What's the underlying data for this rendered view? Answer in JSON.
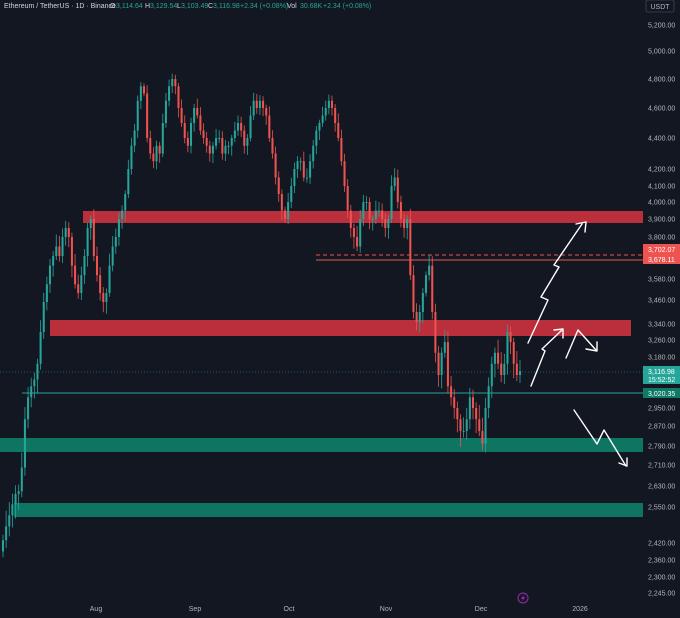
{
  "header": {
    "symbol": "Ethereum / TetherUS · 1D · Binance",
    "open_label": "O",
    "open_value": "3,114.64",
    "high_label": "H",
    "high_value": "3,129.54",
    "low_label": "L",
    "low_value": "3,103.49",
    "close_label": "C",
    "close_value": "3,116.98",
    "change": "+2.34 (+0.08%)",
    "vol_label": "Vol",
    "vol_value": "30.68K",
    "vol_change": "+2.34 (+0.08%)"
  },
  "currency_badge": "USDT",
  "price_tags": {
    "red_upper": "3,702.07",
    "red_lower": "3,678.11",
    "current_price": "3,116.98",
    "countdown": "15:52:52",
    "line_level": "3,020.35"
  },
  "colors": {
    "background": "#131722",
    "up": "#26a69a",
    "down": "#ef5350",
    "resistance_zone": "#d9333f",
    "support_zone": "#10806a",
    "text": "#b2b5be",
    "arrow": "#ffffff"
  },
  "chart_data": {
    "type": "candlestick",
    "instrument": "Ethereum / TetherUS",
    "interval": "1D",
    "exchange": "Binance",
    "y_axis_ticks": [
      "5,200.00",
      "5,000.00",
      "4,800.00",
      "4,600.00",
      "4,400.00",
      "4,200.00",
      "4,100.00",
      "4,000.00",
      "3,900.00",
      "3,800.00",
      "3,580.00",
      "3,460.00",
      "3,340.00",
      "3,260.00",
      "3,180.00",
      "2,950.00",
      "2,870.00",
      "2,790.00",
      "2,710.00",
      "2,630.00",
      "2,550.00",
      "2,420.00",
      "2,360.00",
      "2,300.00",
      "2,245.00"
    ],
    "x_axis_ticks": [
      "Aug",
      "Sep",
      "Oct",
      "Nov",
      "Dec",
      "2026"
    ],
    "candle_closes_approx": [
      2430,
      2480,
      2520,
      2560,
      2600,
      2610,
      2700,
      2900,
      3000,
      3050,
      3080,
      3150,
      3300,
      3450,
      3550,
      3650,
      3700,
      3750,
      3700,
      3800,
      3850,
      3800,
      3650,
      3550,
      3500,
      3600,
      3700,
      3850,
      3900,
      3700,
      3600,
      3500,
      3450,
      3500,
      3650,
      3750,
      3800,
      3900,
      3950,
      4050,
      4200,
      4350,
      4450,
      4650,
      4750,
      4700,
      4400,
      4300,
      4250,
      4350,
      4300,
      4500,
      4650,
      4750,
      4800,
      4750,
      4600,
      4500,
      4400,
      4350,
      4500,
      4600,
      4550,
      4450,
      4400,
      4350,
      4300,
      4350,
      4400,
      4400,
      4300,
      4350,
      4350,
      4400,
      4450,
      4500,
      4450,
      4350,
      4400,
      4550,
      4650,
      4600,
      4650,
      4600,
      4550,
      4400,
      4300,
      4150,
      4050,
      3950,
      3900,
      4000,
      4100,
      4200,
      4250,
      4250,
      4150,
      4150,
      4250,
      4350,
      4450,
      4500,
      4550,
      4600,
      4650,
      4600,
      4500,
      4400,
      4250,
      4100,
      3950,
      3850,
      3800,
      3750,
      3900,
      4000,
      4000,
      3900,
      3900,
      3950,
      3950,
      3900,
      3850,
      3900,
      4100,
      4150,
      4000,
      3900,
      3850,
      3900,
      3600,
      3400,
      3350,
      3400,
      3500,
      3600,
      3650,
      3400,
      3200,
      3100,
      3200,
      3250,
      3050,
      3000,
      2950,
      2900,
      2850,
      2850,
      2900,
      3000,
      2950,
      2900,
      2850,
      2800,
      2950,
      3050,
      3150,
      3200,
      3150,
      3100,
      3150,
      3300,
      3250,
      3150,
      3100,
      3117
    ],
    "zones": [
      {
        "type": "resistance",
        "from": 3880,
        "to": 3940
      },
      {
        "type": "resistance",
        "from": 3290,
        "to": 3350
      },
      {
        "type": "support",
        "from": 2770,
        "to": 2810
      },
      {
        "type": "support",
        "from": 2520,
        "to": 2560
      }
    ],
    "levels": [
      {
        "value": 3702.07,
        "style": "dashed"
      },
      {
        "value": 3678.11,
        "style": "solid"
      },
      {
        "value": 3020.35,
        "style": "solid"
      }
    ],
    "annotations": [
      {
        "type": "zigzag-arrow",
        "direction": "up"
      },
      {
        "type": "zigzag-arrow",
        "direction": "up"
      },
      {
        "type": "zigzag-arrow",
        "direction": "down"
      }
    ]
  }
}
